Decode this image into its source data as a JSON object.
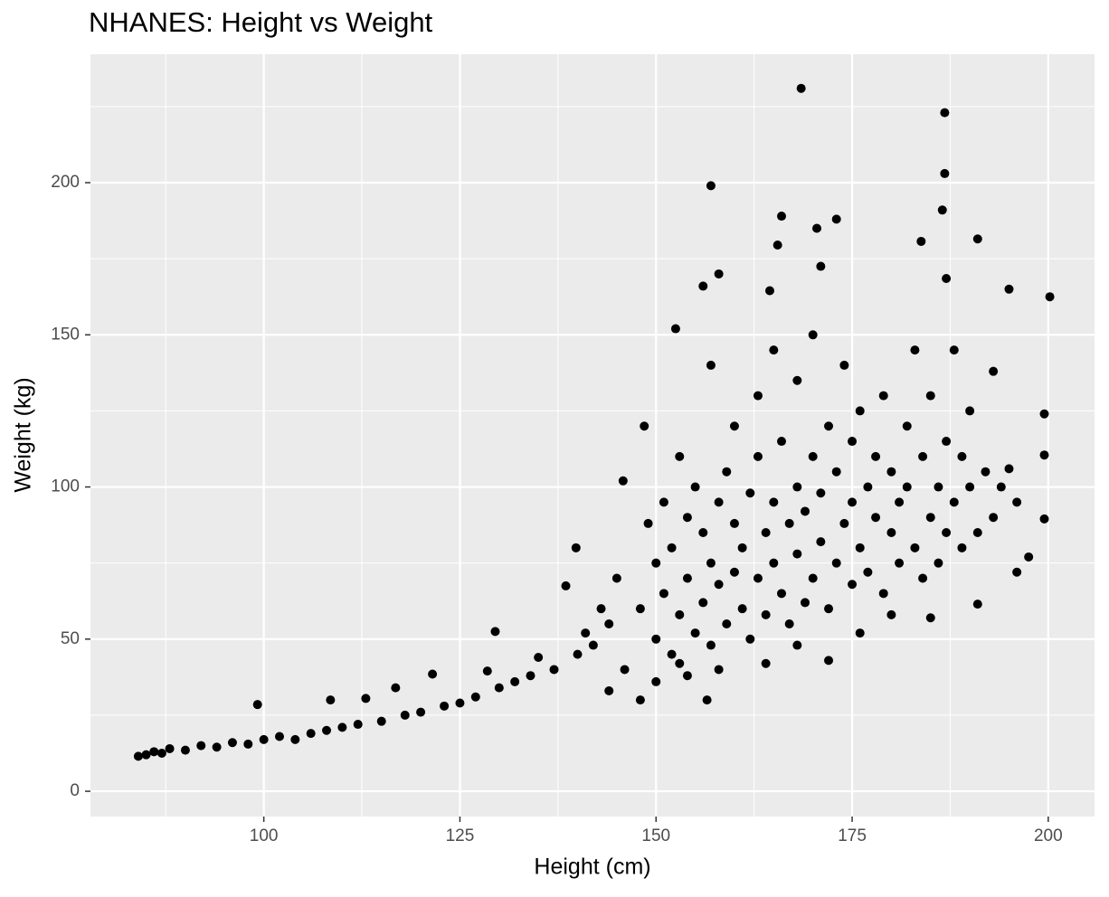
{
  "chart_data": {
    "type": "scatter",
    "title": "NHANES: Height vs Weight",
    "x_label": "Height (cm)",
    "y_label": "Weight (kg)",
    "color": "#000000",
    "panel_color": "#ebebeb",
    "grid": true,
    "xlim": [
      77.9,
      205.9
    ],
    "ylim": [
      -8.3,
      242.2
    ],
    "xticks": [
      100,
      125,
      150,
      175,
      200
    ],
    "yticks": [
      0,
      50,
      100,
      150,
      200
    ],
    "x_minor_breaks": [
      87.5,
      112.5,
      137.5,
      162.5,
      187.5
    ],
    "y_minor_breaks": [
      25,
      75,
      125,
      175,
      225
    ],
    "x": [
      84,
      85,
      86,
      87,
      88,
      90,
      92,
      94,
      96,
      98,
      99.2,
      100,
      102,
      104,
      106,
      108,
      108.5,
      110,
      112,
      113,
      115,
      116.8,
      118,
      120,
      121.5,
      123,
      125,
      127,
      128.5,
      129.5,
      130,
      132,
      134,
      135,
      137,
      138.5,
      139.8,
      140,
      141,
      142,
      143,
      144,
      145,
      148,
      149,
      150,
      150,
      151,
      151,
      152,
      152,
      153,
      153,
      154,
      154,
      155,
      155,
      156,
      156,
      157,
      157,
      157,
      158,
      158,
      159,
      159,
      160,
      160,
      160,
      161,
      161,
      162,
      162,
      163,
      163,
      163,
      164,
      164,
      165,
      165,
      165,
      166,
      166,
      167,
      167,
      168,
      168,
      168,
      169,
      169,
      170,
      170,
      170,
      171,
      171,
      172,
      172,
      173,
      173,
      174,
      174,
      175,
      175,
      175,
      176,
      176,
      177,
      177,
      178,
      178,
      179,
      179,
      180,
      180,
      181,
      181,
      182,
      182,
      183,
      183,
      184,
      184,
      185,
      185,
      186,
      186,
      187,
      187,
      188,
      188,
      189,
      189,
      190,
      190,
      191,
      192,
      193,
      193,
      194,
      195,
      196,
      164,
      168,
      172,
      176,
      180,
      158,
      154,
      150,
      146,
      144,
      148,
      168.5,
      186.8,
      186.8,
      186.5,
      157,
      166,
      173,
      170.5,
      191,
      183.8,
      165.5,
      200.2,
      195,
      171,
      158,
      156,
      187,
      164.5,
      152.5,
      199.5,
      199.5,
      199.5,
      197.5,
      196,
      191,
      185,
      156.5,
      153,
      148.5,
      145.8
    ],
    "values": [
      11.5,
      12,
      13,
      12.5,
      14,
      13.5,
      15,
      14.5,
      16,
      15.5,
      28.5,
      17,
      18,
      17,
      19,
      20,
      30,
      21,
      22,
      30.5,
      23,
      34,
      25,
      26,
      38.5,
      28,
      29,
      31,
      39.5,
      52.5,
      34,
      36,
      38,
      44,
      40,
      67.5,
      80,
      45,
      52,
      48,
      60,
      55,
      70,
      60,
      88,
      50,
      75,
      65,
      95,
      45,
      80,
      58,
      110,
      70,
      90,
      52,
      100,
      62,
      85,
      48,
      75,
      140,
      68,
      95,
      55,
      105,
      72,
      88,
      120,
      60,
      80,
      50,
      98,
      70,
      110,
      130,
      58,
      85,
      75,
      95,
      145,
      65,
      115,
      55,
      88,
      78,
      100,
      135,
      62,
      92,
      70,
      110,
      150,
      82,
      98,
      60,
      120,
      75,
      105,
      88,
      140,
      68,
      95,
      115,
      80,
      125,
      72,
      100,
      90,
      110,
      65,
      130,
      85,
      105,
      75,
      95,
      100,
      120,
      80,
      145,
      70,
      110,
      90,
      130,
      100,
      75,
      115,
      85,
      95,
      145,
      80,
      110,
      100,
      125,
      85,
      105,
      90,
      138,
      100,
      106,
      95,
      42,
      48,
      43,
      52,
      58,
      40,
      38,
      36,
      40,
      33,
      30,
      231,
      223,
      203,
      191,
      199,
      189,
      188,
      185,
      181.5,
      180.7,
      179.5,
      162.5,
      165,
      172.5,
      170,
      166,
      168.5,
      164.5,
      152,
      124,
      110.5,
      89.5,
      77,
      72,
      61.5,
      57,
      30,
      42,
      120,
      102
    ]
  }
}
